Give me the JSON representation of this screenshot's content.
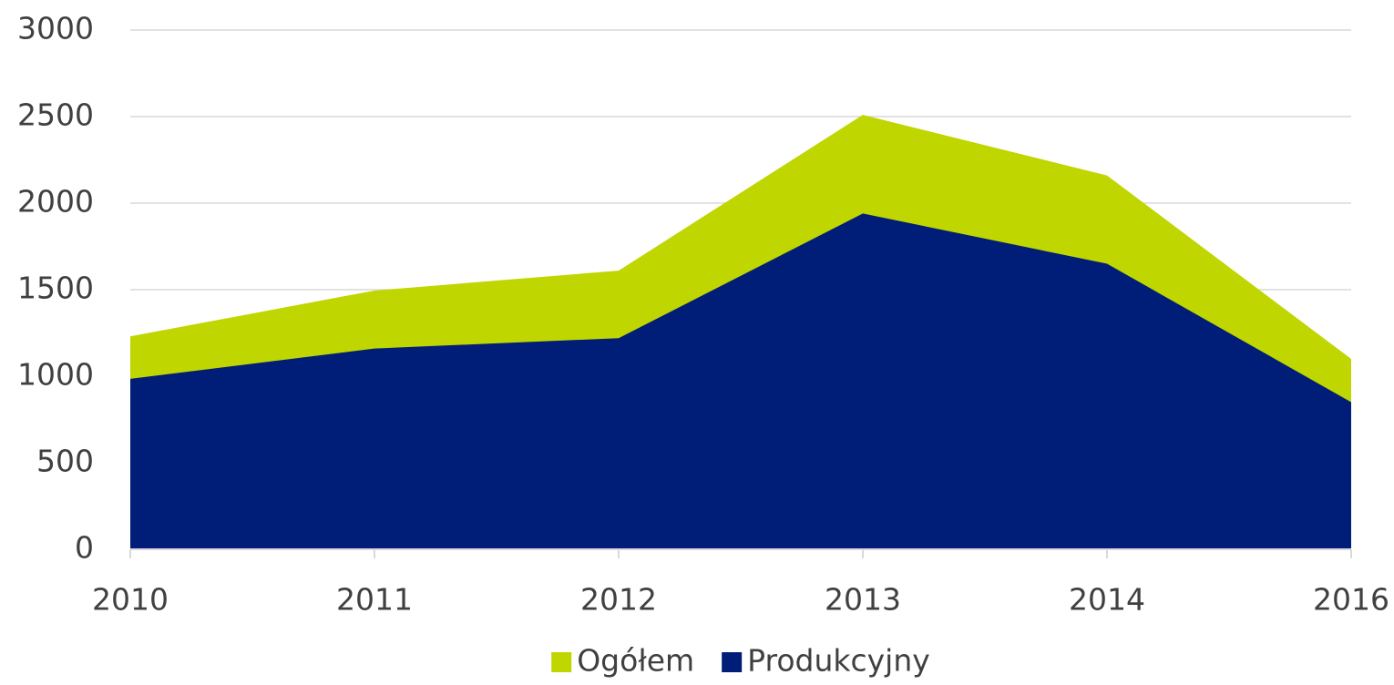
{
  "chart_data": {
    "type": "area",
    "categories": [
      "2010",
      "2011",
      "2012",
      "2013",
      "2014",
      "2016"
    ],
    "series": [
      {
        "name": "Ogółem",
        "color": "#bfd600",
        "values": [
          1230,
          1495,
          1610,
          2510,
          2160,
          1100
        ]
      },
      {
        "name": "Produkcyjny",
        "color": "#001e78",
        "values": [
          985,
          1160,
          1220,
          1940,
          1650,
          850
        ]
      }
    ],
    "ylim": [
      0,
      3000
    ],
    "yticks": [
      0,
      500,
      1000,
      1500,
      2000,
      2500,
      3000
    ],
    "grid": true,
    "legend": "bottom"
  }
}
